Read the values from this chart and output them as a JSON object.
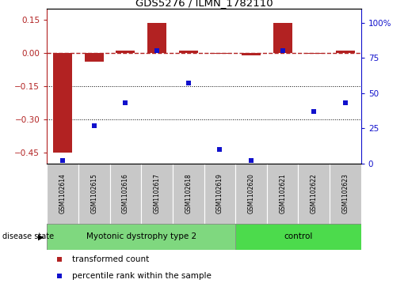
{
  "title": "GDS5276 / ILMN_1782110",
  "categories": [
    "GSM1102614",
    "GSM1102615",
    "GSM1102616",
    "GSM1102617",
    "GSM1102618",
    "GSM1102619",
    "GSM1102620",
    "GSM1102621",
    "GSM1102622",
    "GSM1102623"
  ],
  "red_values": [
    -0.45,
    -0.04,
    0.01,
    0.135,
    0.01,
    -0.005,
    -0.01,
    0.135,
    -0.005,
    0.01
  ],
  "blue_values": [
    2,
    27,
    43,
    80,
    57,
    10,
    2,
    80,
    37,
    43
  ],
  "group1_label": "Myotonic dystrophy type 2",
  "group1_count": 6,
  "group2_label": "control",
  "group2_count": 4,
  "disease_state_label": "disease state",
  "legend_red": "transformed count",
  "legend_blue": "percentile rank within the sample",
  "ylim_left": [
    -0.5,
    0.2
  ],
  "ylim_right": [
    0,
    110
  ],
  "yticks_left": [
    -0.45,
    -0.3,
    -0.15,
    0.0,
    0.15
  ],
  "yticks_right": [
    0,
    25,
    50,
    75,
    100
  ],
  "hline_y": 0.0,
  "dotted_lines": [
    -0.15,
    -0.3
  ],
  "red_color": "#B22222",
  "blue_color": "#1111CC",
  "label_box_color": "#C8C8C8",
  "group1_color": "#7FD87F",
  "group2_color": "#4CDB4C",
  "bar_width": 0.6,
  "xlim": [
    -0.5,
    9.5
  ]
}
